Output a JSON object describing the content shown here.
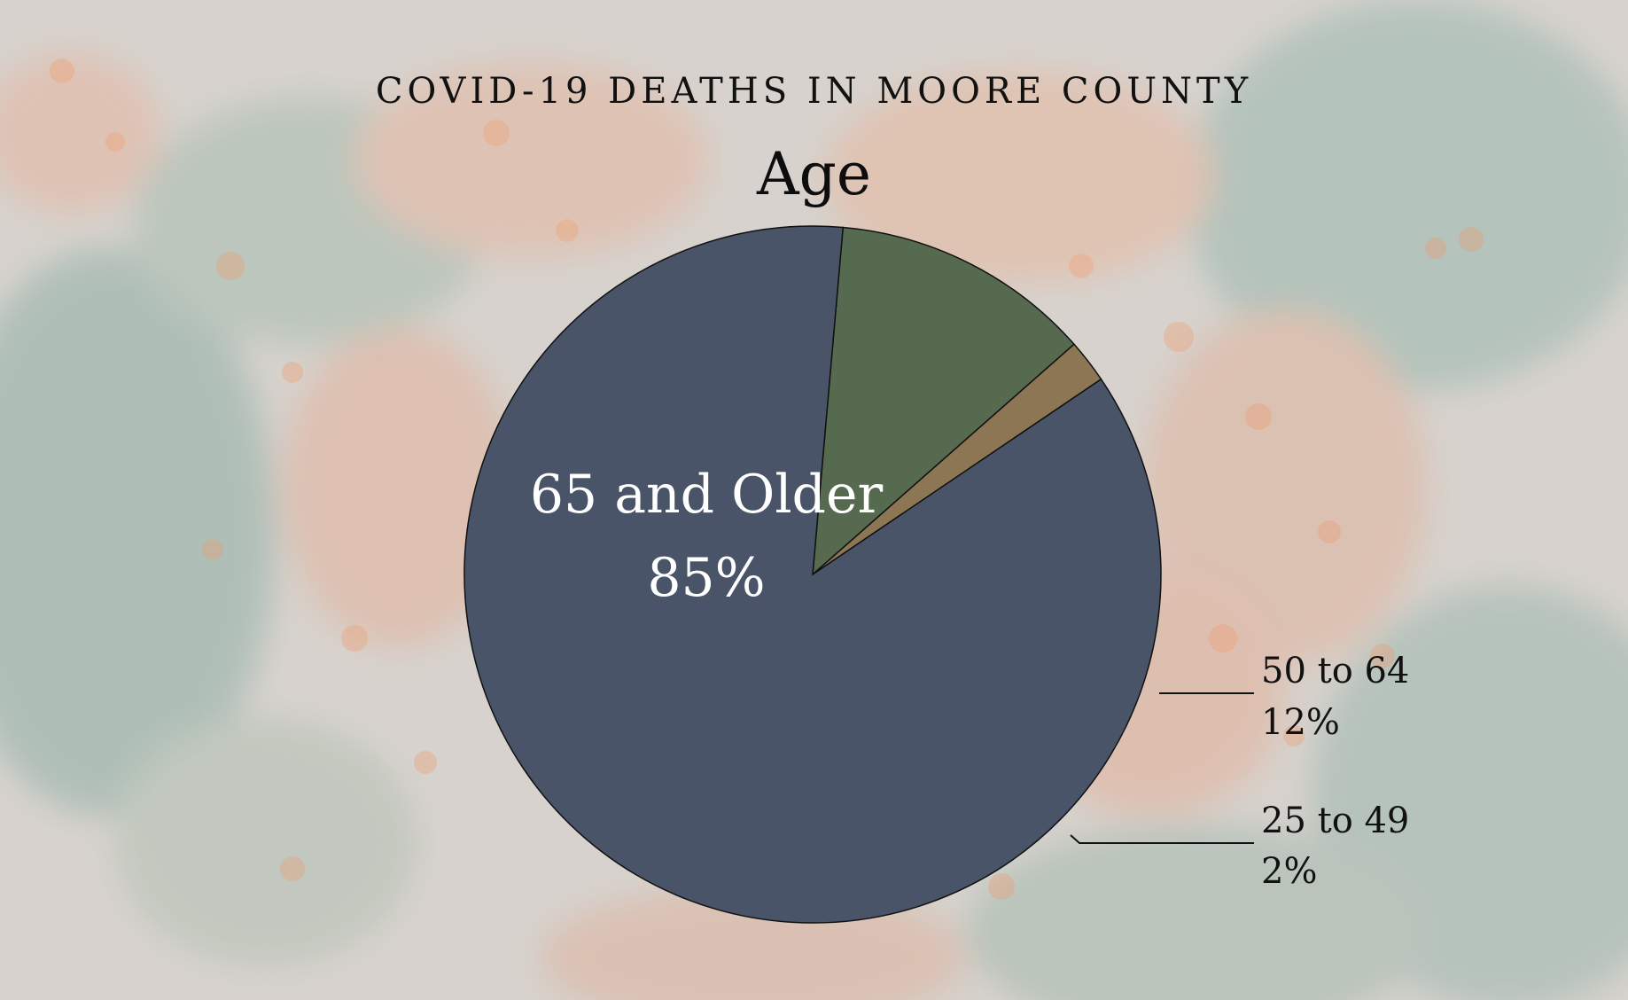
{
  "header": {
    "title": "COVID-19 DEATHS IN MOORE COUNTY",
    "subtitle": "Age"
  },
  "chart_data": {
    "type": "pie",
    "title": "COVID-19 DEATHS IN MOORE COUNTY",
    "subtitle": "Age",
    "slices": [
      {
        "label": "65 and Older",
        "value": 85,
        "value_label": "85%",
        "color": "#495468",
        "label_position": "inside"
      },
      {
        "label": "50 to 64",
        "value": 12,
        "value_label": "12%",
        "color": "#566a50",
        "label_position": "outside-right"
      },
      {
        "label": "25 to 49",
        "value": 2,
        "value_label": "2%",
        "color": "#8d7654",
        "label_position": "outside-right"
      }
    ],
    "start_angle_deg": -85,
    "direction": "clockwise-from-largest-end",
    "legend": "none"
  }
}
